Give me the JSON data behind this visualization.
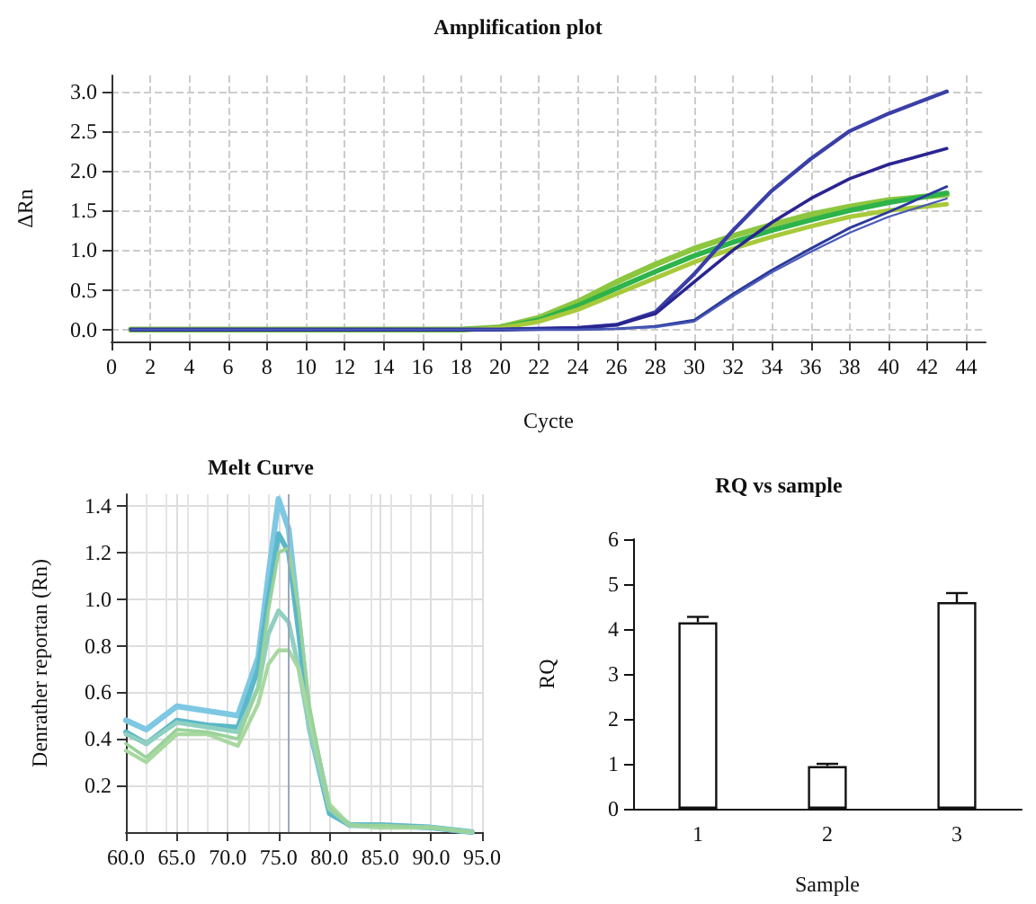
{
  "chart_data": [
    {
      "type": "line",
      "title": "Amplification plot",
      "xlabel": "Cycte",
      "ylabel": "ΔRn",
      "xlim": [
        0,
        45
      ],
      "xticks": [
        0,
        2,
        4,
        6,
        8,
        10,
        12,
        14,
        16,
        18,
        20,
        22,
        24,
        26,
        28,
        30,
        32,
        34,
        36,
        38,
        40,
        42,
        44
      ],
      "ylim": [
        -0.15,
        3.2
      ],
      "yticks": [
        {
          "value": 0,
          "label": "0.0"
        },
        0.5,
        {
          "value": 1,
          "label": "1.0"
        },
        1.5,
        {
          "value": 2,
          "label": "2.0"
        },
        2.5,
        {
          "value": 3,
          "label": "3.0"
        }
      ],
      "grid": true,
      "marker": "none",
      "series": [
        {
          "color": "#8cc63f",
          "x": [
            1,
            18,
            20,
            22,
            24,
            26,
            28,
            30,
            32,
            34,
            36,
            38,
            40,
            43
          ],
          "values": [
            0,
            0,
            0.03,
            0.15,
            0.35,
            0.6,
            0.82,
            1.02,
            1.18,
            1.32,
            1.45,
            1.55,
            1.63,
            1.7
          ]
        },
        {
          "color": "#2db34a",
          "x": [
            1,
            18,
            20,
            22,
            24,
            26,
            28,
            30,
            32,
            34,
            36,
            38,
            40,
            43
          ],
          "values": [
            0,
            0,
            0.02,
            0.12,
            0.3,
            0.52,
            0.73,
            0.93,
            1.1,
            1.25,
            1.38,
            1.5,
            1.6,
            1.72
          ]
        },
        {
          "color": "#a8c93a",
          "x": [
            1,
            18,
            20,
            22,
            24,
            26,
            28,
            30,
            32,
            34,
            36,
            38,
            40,
            43
          ],
          "values": [
            0,
            0,
            0.02,
            0.1,
            0.25,
            0.45,
            0.65,
            0.85,
            1.02,
            1.17,
            1.3,
            1.42,
            1.5,
            1.58
          ]
        },
        {
          "color": "#3a3fa8",
          "x": [
            1,
            20,
            24,
            26,
            28,
            30,
            32,
            34,
            36,
            38,
            40,
            43
          ],
          "values": [
            0,
            0,
            0.02,
            0.06,
            0.22,
            0.7,
            1.25,
            1.75,
            2.15,
            2.5,
            2.72,
            3.0
          ]
        },
        {
          "color": "#2a2590",
          "x": [
            1,
            20,
            24,
            26,
            28,
            30,
            32,
            34,
            36,
            38,
            40,
            43
          ],
          "values": [
            0,
            0,
            0.02,
            0.06,
            0.2,
            0.6,
            1.0,
            1.35,
            1.65,
            1.9,
            2.08,
            2.28
          ]
        },
        {
          "color": "#2c3a9c",
          "x": [
            1,
            20,
            24,
            26,
            28,
            30,
            32,
            34,
            36,
            38,
            40,
            43
          ],
          "values": [
            0,
            0,
            0,
            0.01,
            0.04,
            0.12,
            0.45,
            0.75,
            1.02,
            1.28,
            1.48,
            1.8
          ]
        },
        {
          "color": "#4a5ab8",
          "x": [
            1,
            20,
            24,
            26,
            28,
            30,
            32,
            34,
            36,
            38,
            40,
            43
          ],
          "values": [
            0,
            0,
            0,
            0.01,
            0.03,
            0.1,
            0.42,
            0.72,
            0.98,
            1.22,
            1.42,
            1.65
          ]
        }
      ]
    },
    {
      "type": "line",
      "title": "Melt Curve",
      "ylabel": "Denrather reportan (Rn)",
      "xlim": [
        60,
        95
      ],
      "xticks": [
        {
          "value": 60,
          "label": "60.0"
        },
        {
          "value": 65,
          "label": "65.0"
        },
        {
          "value": 70,
          "label": "70.0"
        },
        {
          "value": 75,
          "label": "75.0"
        },
        {
          "value": 80,
          "label": "80.0"
        },
        {
          "value": 85,
          "label": "85.0"
        },
        {
          "value": 90,
          "label": "90.0"
        },
        {
          "value": 95,
          "label": "95.0"
        }
      ],
      "ylim": [
        0,
        1.45
      ],
      "yticks": [
        0.2,
        0.4,
        0.6,
        0.8,
        {
          "value": 1,
          "label": "1.0"
        },
        1.2,
        1.4
      ],
      "grid": true,
      "marker": "none",
      "ref_lines": [
        {
          "axis": "x",
          "value": 76,
          "color": "#9aa8c0"
        }
      ],
      "series": [
        {
          "color": "#7ec8e3",
          "x": [
            60,
            62,
            65,
            68,
            71,
            73,
            74,
            75,
            76,
            77,
            78,
            80,
            82,
            85,
            90,
            94
          ],
          "values": [
            0.48,
            0.44,
            0.54,
            0.52,
            0.5,
            0.75,
            1.1,
            1.43,
            1.3,
            0.9,
            0.5,
            0.1,
            0.03,
            0.03,
            0.02,
            0
          ]
        },
        {
          "color": "#5bb8c8",
          "x": [
            60,
            62,
            65,
            68,
            71,
            73,
            74,
            75,
            76,
            77,
            78,
            80,
            82,
            85,
            90,
            94
          ],
          "values": [
            0.43,
            0.38,
            0.48,
            0.46,
            0.45,
            0.7,
            1.0,
            1.28,
            1.2,
            0.85,
            0.45,
            0.08,
            0.03,
            0.03,
            0.02,
            0
          ]
        },
        {
          "color": "#8fd0c0",
          "x": [
            60,
            62,
            65,
            68,
            71,
            73,
            74,
            75,
            76,
            77,
            78,
            80,
            82,
            85,
            90,
            94
          ],
          "values": [
            0.42,
            0.38,
            0.47,
            0.45,
            0.43,
            0.62,
            0.85,
            0.95,
            0.9,
            0.7,
            0.45,
            0.1,
            0.03,
            0.02,
            0.02,
            0
          ]
        },
        {
          "color": "#a8d8a0",
          "x": [
            60,
            62,
            65,
            68,
            71,
            73,
            74,
            75,
            76,
            77,
            78,
            80,
            82,
            85,
            90,
            94
          ],
          "values": [
            0.35,
            0.3,
            0.42,
            0.42,
            0.37,
            0.55,
            0.72,
            0.78,
            0.78,
            0.7,
            0.5,
            0.12,
            0.03,
            0.02,
            0.02,
            0
          ]
        },
        {
          "color": "#9ad29a",
          "x": [
            60,
            62,
            65,
            68,
            71,
            73,
            74,
            75,
            76,
            77,
            78,
            80,
            82,
            85,
            90,
            94
          ],
          "values": [
            0.38,
            0.32,
            0.44,
            0.43,
            0.4,
            0.62,
            0.95,
            1.2,
            1.22,
            0.95,
            0.55,
            0.1,
            0.03,
            0.03,
            0.02,
            0
          ]
        }
      ]
    },
    {
      "type": "bar",
      "title": "RQ vs sample",
      "xlabel": "Sample",
      "ylabel": "RQ",
      "categories": [
        "1",
        "2",
        "3"
      ],
      "values": [
        4.15,
        0.95,
        4.6
      ],
      "errors": [
        0.12,
        0.05,
        0.2
      ],
      "color": "#ffffff",
      "ylim": [
        0,
        6
      ],
      "yticks": [
        0,
        1,
        2,
        3,
        4,
        5,
        6
      ],
      "grid": false
    }
  ]
}
